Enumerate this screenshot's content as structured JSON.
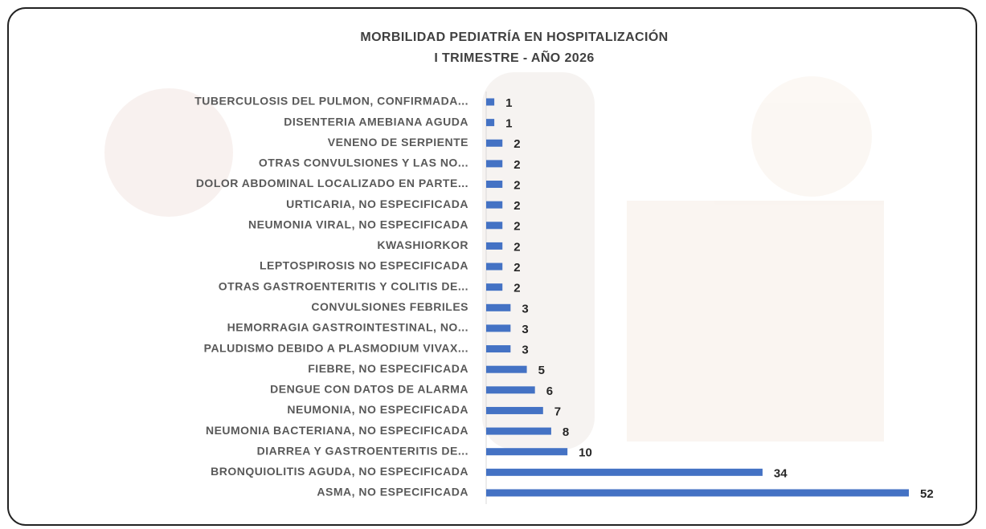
{
  "chart_data": {
    "type": "bar",
    "orientation": "horizontal",
    "title": "MORBILIDAD PEDIATRÍA EN HOSPITALIZACIÓN",
    "subtitle": "I TRIMESTRE - AÑO 2026",
    "color": "#4472c4",
    "categories": [
      "TUBERCULOSIS DEL PULMON, CONFIRMADA...",
      "DISENTERIA AMEBIANA AGUDA",
      "VENENO DE SERPIENTE",
      "OTRAS CONVULSIONES Y LAS NO...",
      "DOLOR ABDOMINAL LOCALIZADO EN PARTE...",
      "URTICARIA, NO ESPECIFICADA",
      "NEUMONIA VIRAL, NO ESPECIFICADA",
      "KWASHIORKOR",
      "LEPTOSPIROSIS NO ESPECIFICADA",
      "OTRAS GASTROENTERITIS Y COLITIS DE...",
      "CONVULSIONES FEBRILES",
      "HEMORRAGIA GASTROINTESTINAL, NO...",
      "PALUDISMO DEBIDO A PLASMODIUM VIVAX...",
      "FIEBRE, NO ESPECIFICADA",
      "DENGUE CON DATOS DE ALARMA",
      "NEUMONIA, NO ESPECIFICADA",
      "NEUMONIA BACTERIANA, NO ESPECIFICADA",
      "DIARREA Y GASTROENTERITIS DE...",
      "BRONQUIOLITIS AGUDA, NO ESPECIFICADA",
      "ASMA, NO ESPECIFICADA"
    ],
    "values": [
      1,
      1,
      2,
      2,
      2,
      2,
      2,
      2,
      2,
      2,
      3,
      3,
      3,
      5,
      6,
      7,
      8,
      10,
      34,
      52
    ]
  }
}
